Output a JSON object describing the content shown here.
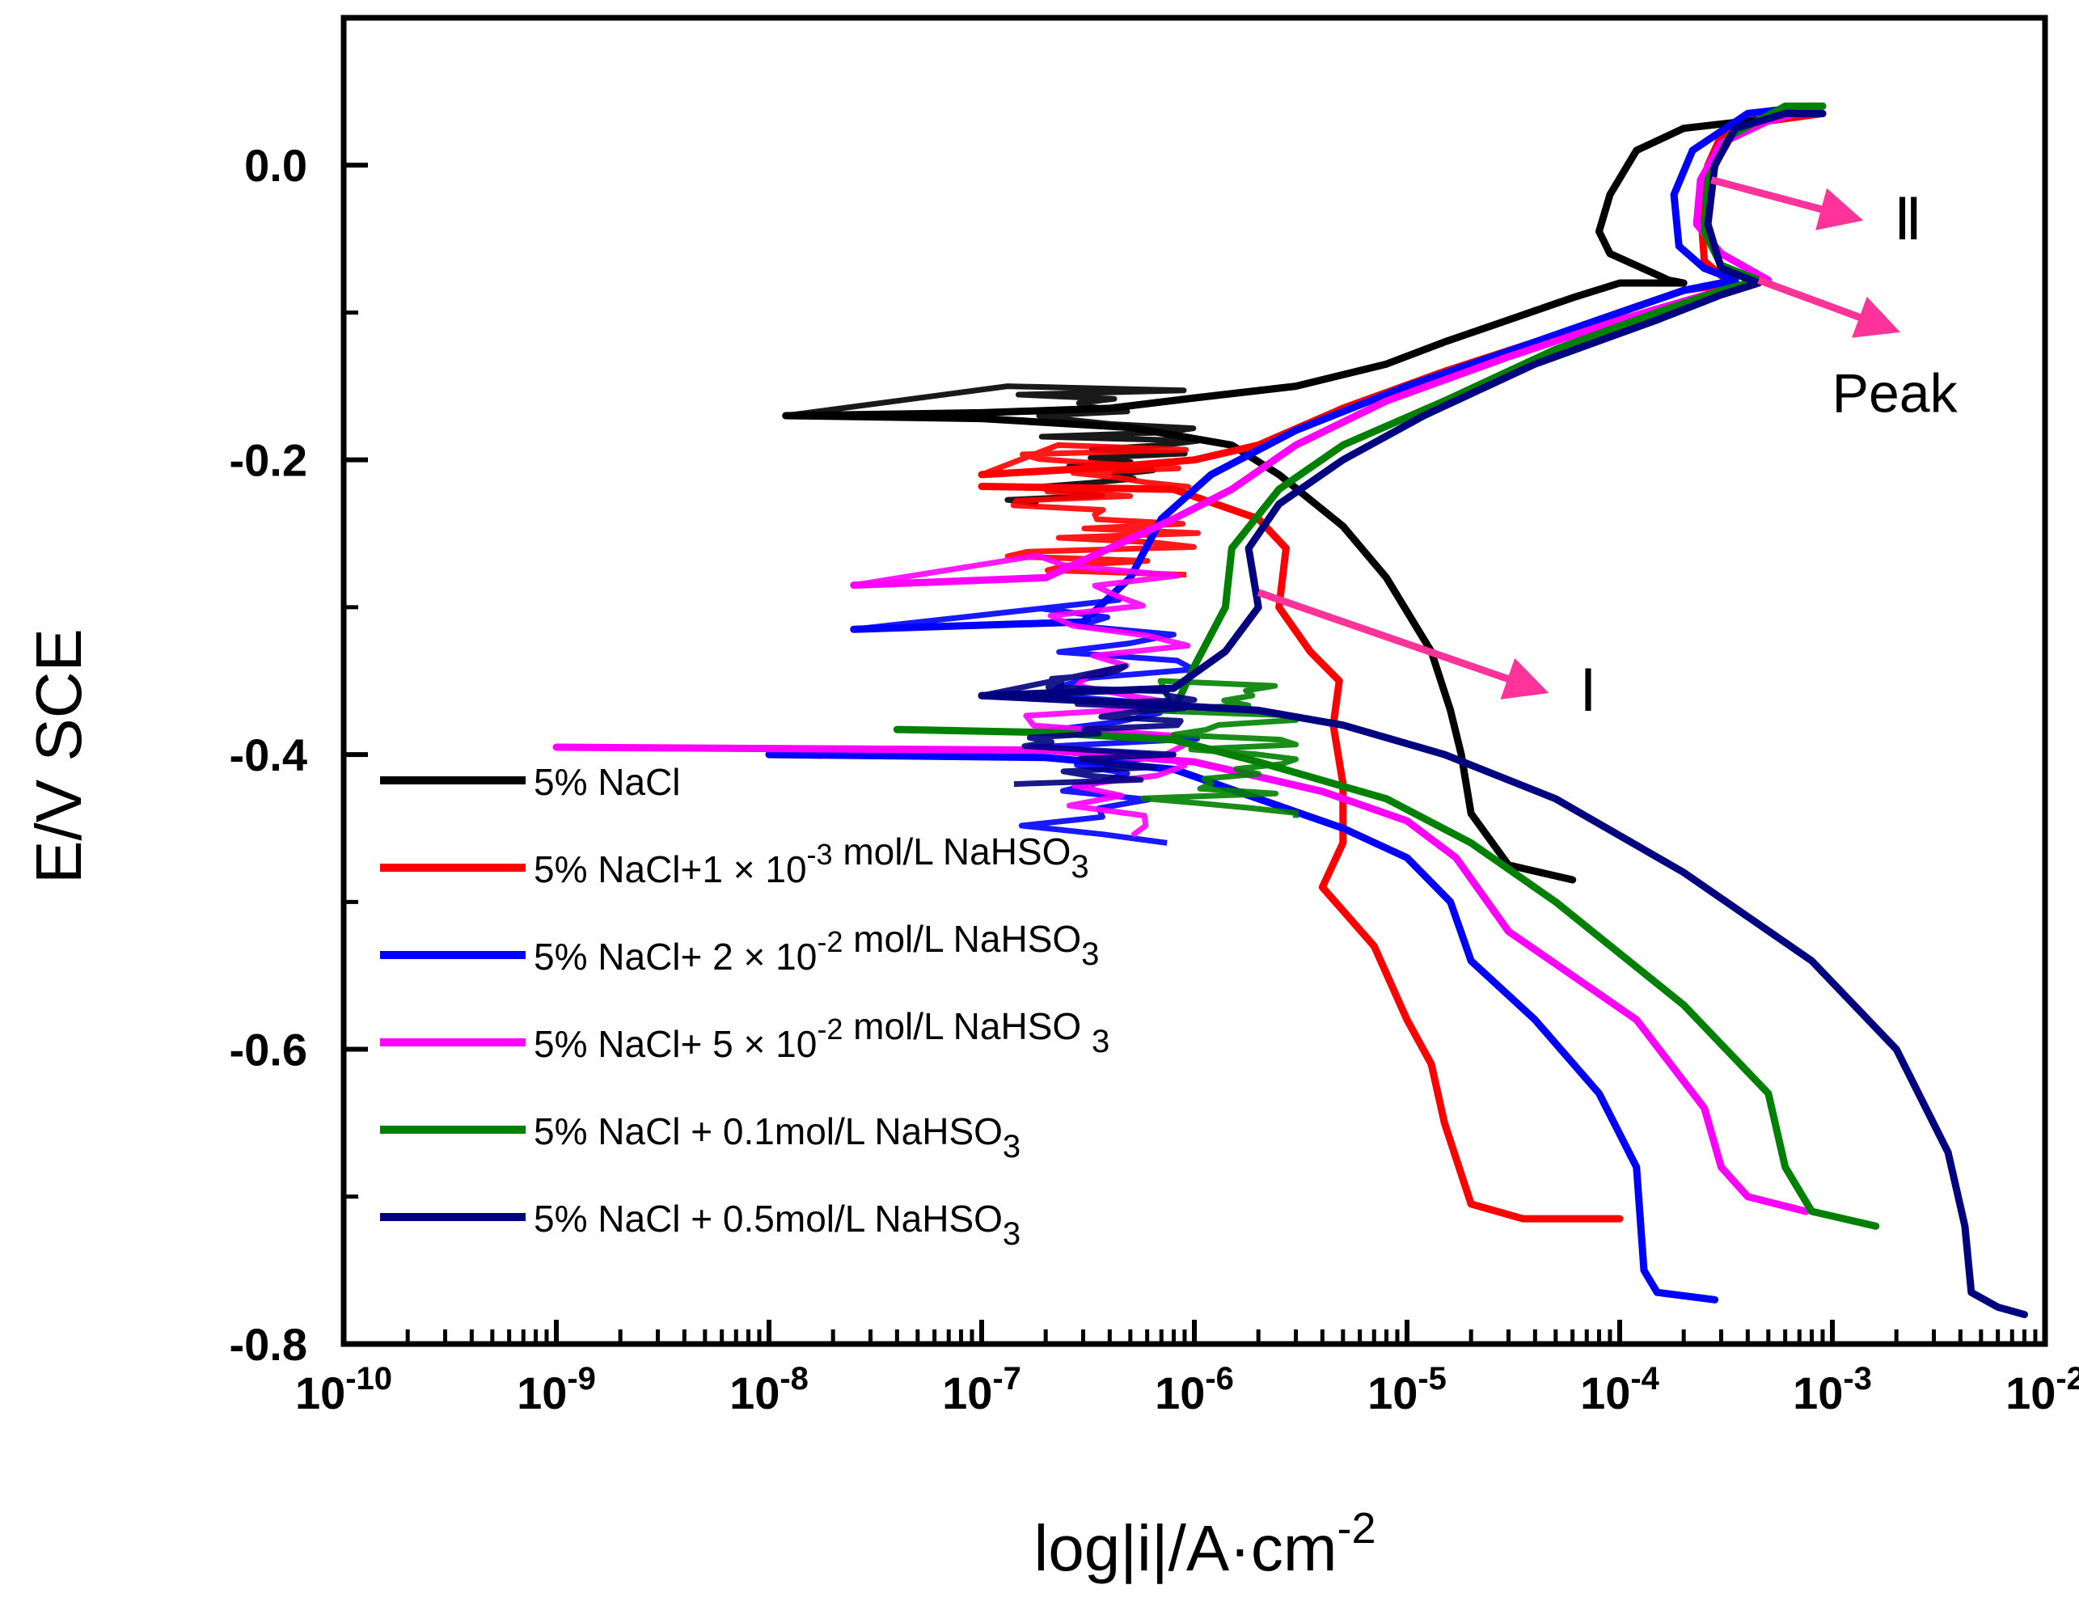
{
  "chart_data": {
    "type": "line",
    "title": "",
    "xlabel": "log|i|/A·cm",
    "xlabel_sup": "-2",
    "ylabel": "E/V SCE",
    "xscale": "log",
    "xlim": [
      1e-10,
      0.01
    ],
    "ylim": [
      -0.8,
      0.1
    ],
    "x_ticks": [
      {
        "value": 1e-10,
        "base": "10",
        "exp": "-10"
      },
      {
        "value": 1e-09,
        "base": "10",
        "exp": "-9"
      },
      {
        "value": 1e-08,
        "base": "10",
        "exp": "-8"
      },
      {
        "value": 1e-07,
        "base": "10",
        "exp": "-7"
      },
      {
        "value": 1e-06,
        "base": "10",
        "exp": "-6"
      },
      {
        "value": 1e-05,
        "base": "10",
        "exp": "-5"
      },
      {
        "value": 0.0001,
        "base": "10",
        "exp": "-4"
      },
      {
        "value": 0.001,
        "base": "10",
        "exp": "-3"
      },
      {
        "value": 0.01,
        "base": "10",
        "exp": "-2"
      }
    ],
    "y_ticks": [
      {
        "value": 0.0,
        "label": "0.0"
      },
      {
        "value": -0.2,
        "label": "-0.2"
      },
      {
        "value": -0.4,
        "label": "-0.4"
      },
      {
        "value": -0.6,
        "label": "-0.6"
      },
      {
        "value": -0.8,
        "label": "-0.8"
      }
    ],
    "legend_position": "bottom-left",
    "series": [
      {
        "name": "5% NaCl",
        "legend_parts": [
          {
            "t": "5% NaCl"
          }
        ],
        "color": "#000000",
        "cathodic": [
          [
            6e-05,
            -0.485
          ],
          [
            3e-05,
            -0.475
          ],
          [
            2e-05,
            -0.44
          ],
          [
            1.8e-05,
            -0.4
          ],
          [
            1.6e-05,
            -0.37
          ],
          [
            1.3e-05,
            -0.33
          ],
          [
            8e-06,
            -0.28
          ],
          [
            5e-06,
            -0.245
          ],
          [
            2.5e-06,
            -0.21
          ],
          [
            1.5e-06,
            -0.19
          ],
          [
            5e-07,
            -0.178
          ],
          [
            1e-07,
            -0.172
          ],
          [
            1.2e-08,
            -0.17
          ]
        ],
        "anodic": [
          [
            1.2e-08,
            -0.17
          ],
          [
            1e-07,
            -0.168
          ],
          [
            4e-07,
            -0.165
          ],
          [
            1e-06,
            -0.158
          ],
          [
            3e-06,
            -0.15
          ],
          [
            8e-06,
            -0.135
          ],
          [
            1.5e-05,
            -0.12
          ],
          [
            3e-05,
            -0.105
          ],
          [
            6e-05,
            -0.09
          ],
          [
            0.0001,
            -0.08
          ],
          [
            0.0002,
            -0.08
          ],
          [
            0.00017,
            -0.078
          ],
          [
            9e-05,
            -0.06
          ],
          [
            8e-05,
            -0.045
          ],
          [
            9e-05,
            -0.02
          ],
          [
            0.00012,
            0.01
          ],
          [
            0.0002,
            0.025
          ],
          [
            0.0004,
            0.03
          ],
          [
            0.0009,
            0.035
          ]
        ]
      },
      {
        "name": "5% NaCl+1 × 10-3 mol/L NaHSO3",
        "legend_parts": [
          {
            "t": "5% NaCl+1 × 10"
          },
          {
            "t": "-3",
            "sup": true
          },
          {
            "t": " mol/L NaHSO"
          },
          {
            "t": "3",
            "sub": true
          }
        ],
        "color": "#ff0000",
        "cathodic": [
          [
            0.0001,
            -0.715
          ],
          [
            3.5e-05,
            -0.715
          ],
          [
            2e-05,
            -0.705
          ],
          [
            1.5e-05,
            -0.65
          ],
          [
            1.3e-05,
            -0.61
          ],
          [
            1e-05,
            -0.58
          ],
          [
            7e-06,
            -0.53
          ],
          [
            4e-06,
            -0.49
          ],
          [
            5e-06,
            -0.46
          ],
          [
            5e-06,
            -0.42
          ],
          [
            4.5e-06,
            -0.38
          ],
          [
            4.8e-06,
            -0.35
          ],
          [
            3.5e-06,
            -0.33
          ],
          [
            2.5e-06,
            -0.3
          ],
          [
            2.7e-06,
            -0.26
          ],
          [
            2e-06,
            -0.24
          ],
          [
            8e-07,
            -0.22
          ],
          [
            1e-07,
            -0.218
          ]
        ],
        "anodic": [
          [
            1e-07,
            -0.21
          ],
          [
            4e-07,
            -0.205
          ],
          [
            1e-06,
            -0.2
          ],
          [
            2e-06,
            -0.19
          ],
          [
            5e-06,
            -0.165
          ],
          [
            1.5e-05,
            -0.14
          ],
          [
            4e-05,
            -0.12
          ],
          [
            0.0001,
            -0.1
          ],
          [
            0.0002,
            -0.085
          ],
          [
            0.00035,
            -0.08
          ],
          [
            0.0003,
            -0.075
          ],
          [
            0.00025,
            -0.065
          ],
          [
            0.00024,
            -0.03
          ],
          [
            0.00026,
            0.0
          ],
          [
            0.0003,
            0.02
          ],
          [
            0.0005,
            0.03
          ],
          [
            0.0009,
            0.035
          ]
        ]
      },
      {
        "name": "5% NaCl+ 2 × 10-2 mol/L NaHSO3",
        "legend_parts": [
          {
            "t": "5% NaCl+ 2 × 10"
          },
          {
            "t": "-2",
            "sup": true
          },
          {
            "t": " mol/L NaHSO"
          },
          {
            "t": "3",
            "sub": true
          }
        ],
        "color": "#0000ff",
        "cathodic": [
          [
            0.00028,
            -0.77
          ],
          [
            0.00015,
            -0.765
          ],
          [
            0.00013,
            -0.75
          ],
          [
            0.00012,
            -0.68
          ],
          [
            8e-05,
            -0.63
          ],
          [
            4e-05,
            -0.58
          ],
          [
            2e-05,
            -0.54
          ],
          [
            1.6e-05,
            -0.5
          ],
          [
            1e-05,
            -0.47
          ],
          [
            5e-06,
            -0.45
          ],
          [
            2e-06,
            -0.43
          ],
          [
            8e-07,
            -0.41
          ],
          [
            2e-07,
            -0.402
          ],
          [
            1e-08,
            -0.4
          ]
        ],
        "anodic": [
          [
            2.5e-08,
            -0.315
          ],
          [
            3e-07,
            -0.31
          ],
          [
            5e-07,
            -0.28
          ],
          [
            7e-07,
            -0.24
          ],
          [
            1.2e-06,
            -0.21
          ],
          [
            3e-06,
            -0.18
          ],
          [
            1e-05,
            -0.15
          ],
          [
            4e-05,
            -0.12
          ],
          [
            0.0001,
            -0.1
          ],
          [
            0.0002,
            -0.085
          ],
          [
            0.00035,
            -0.078
          ],
          [
            0.00025,
            -0.07
          ],
          [
            0.00019,
            -0.055
          ],
          [
            0.00018,
            -0.02
          ],
          [
            0.00022,
            0.01
          ],
          [
            0.0004,
            0.035
          ],
          [
            0.0008,
            0.04
          ]
        ]
      },
      {
        "name": "5% NaCl+ 5 × 10-2 mol/L NaHSO 3",
        "legend_parts": [
          {
            "t": "5% NaCl+ 5 × 10"
          },
          {
            "t": "-2",
            "sup": true
          },
          {
            "t": " mol/L NaHSO "
          },
          {
            "t": "3",
            "sub": true
          }
        ],
        "color": "#ff00ff",
        "cathodic": [
          [
            0.00075,
            -0.71
          ],
          [
            0.0004,
            -0.7
          ],
          [
            0.0003,
            -0.68
          ],
          [
            0.00025,
            -0.64
          ],
          [
            0.00012,
            -0.58
          ],
          [
            3e-05,
            -0.52
          ],
          [
            1.7e-05,
            -0.47
          ],
          [
            1e-05,
            -0.445
          ],
          [
            4e-06,
            -0.425
          ],
          [
            1e-06,
            -0.405
          ],
          [
            2e-07,
            -0.397
          ],
          [
            1e-09,
            -0.395
          ]
        ],
        "anodic": [
          [
            2.5e-08,
            -0.285
          ],
          [
            2e-07,
            -0.28
          ],
          [
            4e-07,
            -0.26
          ],
          [
            8e-07,
            -0.24
          ],
          [
            1.5e-06,
            -0.22
          ],
          [
            3e-06,
            -0.19
          ],
          [
            8e-06,
            -0.16
          ],
          [
            3e-05,
            -0.13
          ],
          [
            0.0001,
            -0.105
          ],
          [
            0.0003,
            -0.085
          ],
          [
            0.0005,
            -0.078
          ],
          [
            0.0003,
            -0.06
          ],
          [
            0.00023,
            -0.04
          ],
          [
            0.00024,
            -0.01
          ],
          [
            0.0003,
            0.015
          ],
          [
            0.0005,
            0.03
          ],
          [
            0.0009,
            0.04
          ]
        ]
      },
      {
        "name": "5% NaCl + 0.1mol/L NaHSO3",
        "legend_parts": [
          {
            "t": "5% NaCl + 0.1mol/L NaHSO"
          },
          {
            "t": "3",
            "sub": true
          }
        ],
        "color": "#008000",
        "cathodic": [
          [
            0.0016,
            -0.72
          ],
          [
            0.0008,
            -0.71
          ],
          [
            0.0006,
            -0.68
          ],
          [
            0.0005,
            -0.63
          ],
          [
            0.0002,
            -0.57
          ],
          [
            5e-05,
            -0.5
          ],
          [
            2e-05,
            -0.46
          ],
          [
            8e-06,
            -0.43
          ],
          [
            2e-06,
            -0.405
          ],
          [
            8e-07,
            -0.39
          ],
          [
            2e-07,
            -0.385
          ],
          [
            4e-08,
            -0.383
          ]
        ],
        "anodic": [
          [
            8e-07,
            -0.37
          ],
          [
            1e-06,
            -0.34
          ],
          [
            1.4e-06,
            -0.3
          ],
          [
            1.5e-06,
            -0.26
          ],
          [
            2.5e-06,
            -0.22
          ],
          [
            5e-06,
            -0.19
          ],
          [
            1.5e-05,
            -0.16
          ],
          [
            5e-05,
            -0.125
          ],
          [
            0.00015,
            -0.1
          ],
          [
            0.0003,
            -0.085
          ],
          [
            0.00045,
            -0.078
          ],
          [
            0.0003,
            -0.068
          ],
          [
            0.00025,
            -0.045
          ],
          [
            0.00026,
            -0.01
          ],
          [
            0.00033,
            0.02
          ],
          [
            0.0006,
            0.04
          ],
          [
            0.0009,
            0.04
          ]
        ]
      },
      {
        "name": "5% NaCl + 0.5mol/L NaHSO3",
        "legend_parts": [
          {
            "t": "5% NaCl + 0.5mol/L NaHSO"
          },
          {
            "t": "3",
            "sub": true
          }
        ],
        "color": "#000080",
        "cathodic": [
          [
            0.008,
            -0.78
          ],
          [
            0.006,
            -0.775
          ],
          [
            0.0045,
            -0.765
          ],
          [
            0.0042,
            -0.72
          ],
          [
            0.0035,
            -0.67
          ],
          [
            0.002,
            -0.6
          ],
          [
            0.0008,
            -0.54
          ],
          [
            0.0002,
            -0.48
          ],
          [
            5e-05,
            -0.43
          ],
          [
            1.5e-05,
            -0.4
          ],
          [
            5e-06,
            -0.38
          ],
          [
            2e-06,
            -0.37
          ],
          [
            5e-07,
            -0.365
          ],
          [
            1e-07,
            -0.36
          ]
        ],
        "anodic": [
          [
            1e-07,
            -0.36
          ],
          [
            8e-07,
            -0.355
          ],
          [
            1.4e-06,
            -0.33
          ],
          [
            2e-06,
            -0.3
          ],
          [
            1.8e-06,
            -0.26
          ],
          [
            2.5e-06,
            -0.23
          ],
          [
            5e-06,
            -0.2
          ],
          [
            1.2e-05,
            -0.17
          ],
          [
            4e-05,
            -0.135
          ],
          [
            0.00015,
            -0.105
          ],
          [
            0.0003,
            -0.088
          ],
          [
            0.00045,
            -0.08
          ],
          [
            0.0003,
            -0.07
          ],
          [
            0.00026,
            -0.04
          ],
          [
            0.00028,
            0.0
          ],
          [
            0.00035,
            0.025
          ],
          [
            0.0006,
            0.035
          ],
          [
            0.0009,
            0.035
          ]
        ]
      }
    ],
    "annotations": [
      {
        "label": "Ⅰ",
        "from": [
          2e-06,
          -0.29
        ],
        "to": [
          4e-05,
          -0.355
        ]
      },
      {
        "label": "Ⅱ",
        "from": [
          0.00027,
          -0.01
        ],
        "to": [
          0.0012,
          -0.035
        ]
      },
      {
        "label": "Peak",
        "from": [
          0.00045,
          -0.078
        ],
        "to": [
          0.0018,
          -0.11
        ]
      }
    ],
    "annotation_color": "#ff3399"
  }
}
